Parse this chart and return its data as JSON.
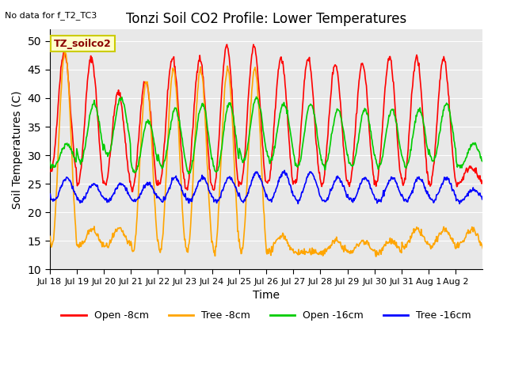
{
  "title": "Tonzi Soil CO2 Profile: Lower Temperatures",
  "subtitle": "No data for f_T2_TC3",
  "xlabel": "Time",
  "ylabel": "Soil Temperatures (C)",
  "ylim": [
    10,
    52
  ],
  "yticks": [
    10,
    15,
    20,
    25,
    30,
    35,
    40,
    45,
    50
  ],
  "bg_color": "#e8e8e8",
  "annotation": "TZ_soilco2",
  "annotation_color": "#8b0000",
  "annotation_bg": "#ffffcc",
  "colors": {
    "open_8cm": "#ff0000",
    "tree_8cm": "#ffa500",
    "open_16cm": "#00cc00",
    "tree_16cm": "#0000ff"
  },
  "n_days": 16,
  "pts_per_day": 48,
  "open_8cm_peaks": [
    48,
    47,
    41,
    43,
    47,
    47,
    49,
    49,
    47,
    47,
    46,
    46,
    47,
    47,
    47,
    28
  ],
  "open_8cm_troughs": [
    27,
    25,
    25,
    24,
    25,
    24,
    24,
    25,
    25,
    25,
    25,
    25,
    25,
    25,
    25,
    25
  ],
  "tree_8cm_peaks": [
    48,
    17,
    17,
    43,
    45,
    45,
    45,
    45,
    16,
    13,
    15,
    15,
    15,
    17,
    17,
    17
  ],
  "tree_8cm_troughs": [
    14,
    14,
    14,
    13,
    13,
    13,
    13,
    13,
    13,
    13,
    13,
    13,
    13,
    14,
    14,
    14
  ],
  "open_16cm_peaks": [
    32,
    39,
    40,
    36,
    38,
    39,
    39,
    40,
    39,
    39,
    38,
    38,
    38,
    38,
    39,
    32
  ],
  "open_16cm_troughs": [
    28,
    29,
    30,
    27,
    28,
    27,
    27,
    29,
    29,
    28,
    28,
    28,
    28,
    28,
    29,
    28
  ],
  "tree_16cm_peaks": [
    26,
    25,
    25,
    25,
    26,
    26,
    26,
    27,
    27,
    27,
    26,
    26,
    26,
    26,
    26,
    24
  ],
  "tree_16cm_troughs": [
    22,
    22,
    22,
    22,
    22,
    22,
    22,
    22,
    22,
    22,
    22,
    22,
    22,
    22,
    22,
    22
  ],
  "x_tick_labels": [
    "Jul 18",
    "Jul 19",
    "Jul 20",
    "Jul 21",
    "Jul 22",
    "Jul 23",
    "Jul 24",
    "Jul 25",
    "Jul 26",
    "Jul 27",
    "Jul 28",
    "Jul 29",
    "Jul 30",
    "Jul 31",
    "Aug 1",
    "Aug 2"
  ],
  "legend_colors": [
    "#ff0000",
    "#ffa500",
    "#00cc00",
    "#0000ff"
  ],
  "legend_labels": [
    "Open -8cm",
    "Tree -8cm",
    "Open -16cm",
    "Tree -16cm"
  ]
}
